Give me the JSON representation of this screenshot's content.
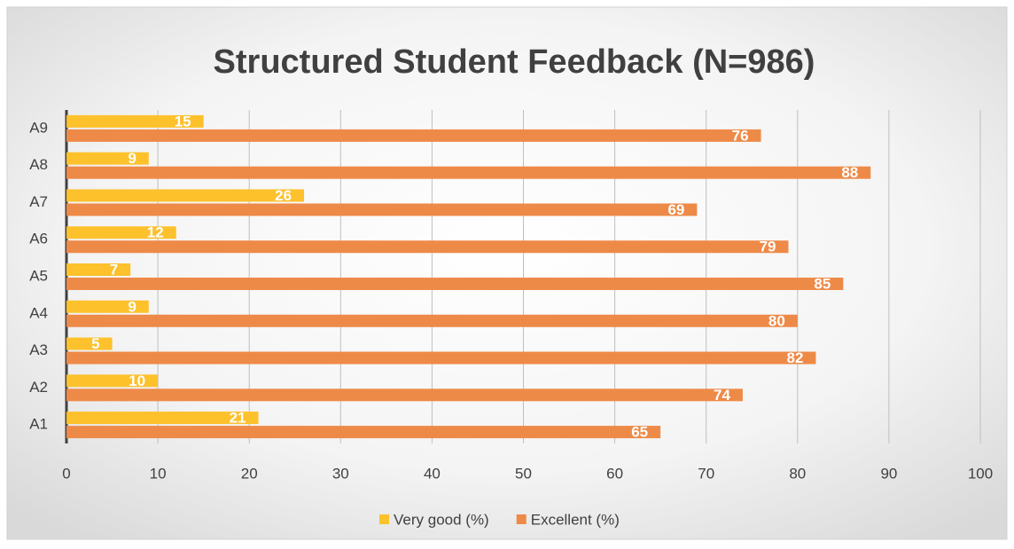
{
  "chart_data": {
    "type": "bar",
    "orientation": "horizontal",
    "title": "Structured Student Feedback (N=986)",
    "categories": [
      "A1",
      "A2",
      "A3",
      "A4",
      "A5",
      "A6",
      "A7",
      "A8",
      "A9"
    ],
    "series": [
      {
        "name": "Very good (%)",
        "color": "#FDC12C",
        "values": [
          21,
          10,
          5,
          9,
          7,
          12,
          26,
          9,
          15
        ]
      },
      {
        "name": "Excellent (%)",
        "color": "#EE8A48",
        "values": [
          65,
          74,
          82,
          80,
          85,
          79,
          69,
          88,
          76
        ]
      }
    ],
    "xlim": [
      0,
      100
    ],
    "xticks": [
      0,
      10,
      20,
      30,
      40,
      50,
      60,
      70,
      80,
      90,
      100
    ],
    "grid": true,
    "legend": "bottom"
  }
}
